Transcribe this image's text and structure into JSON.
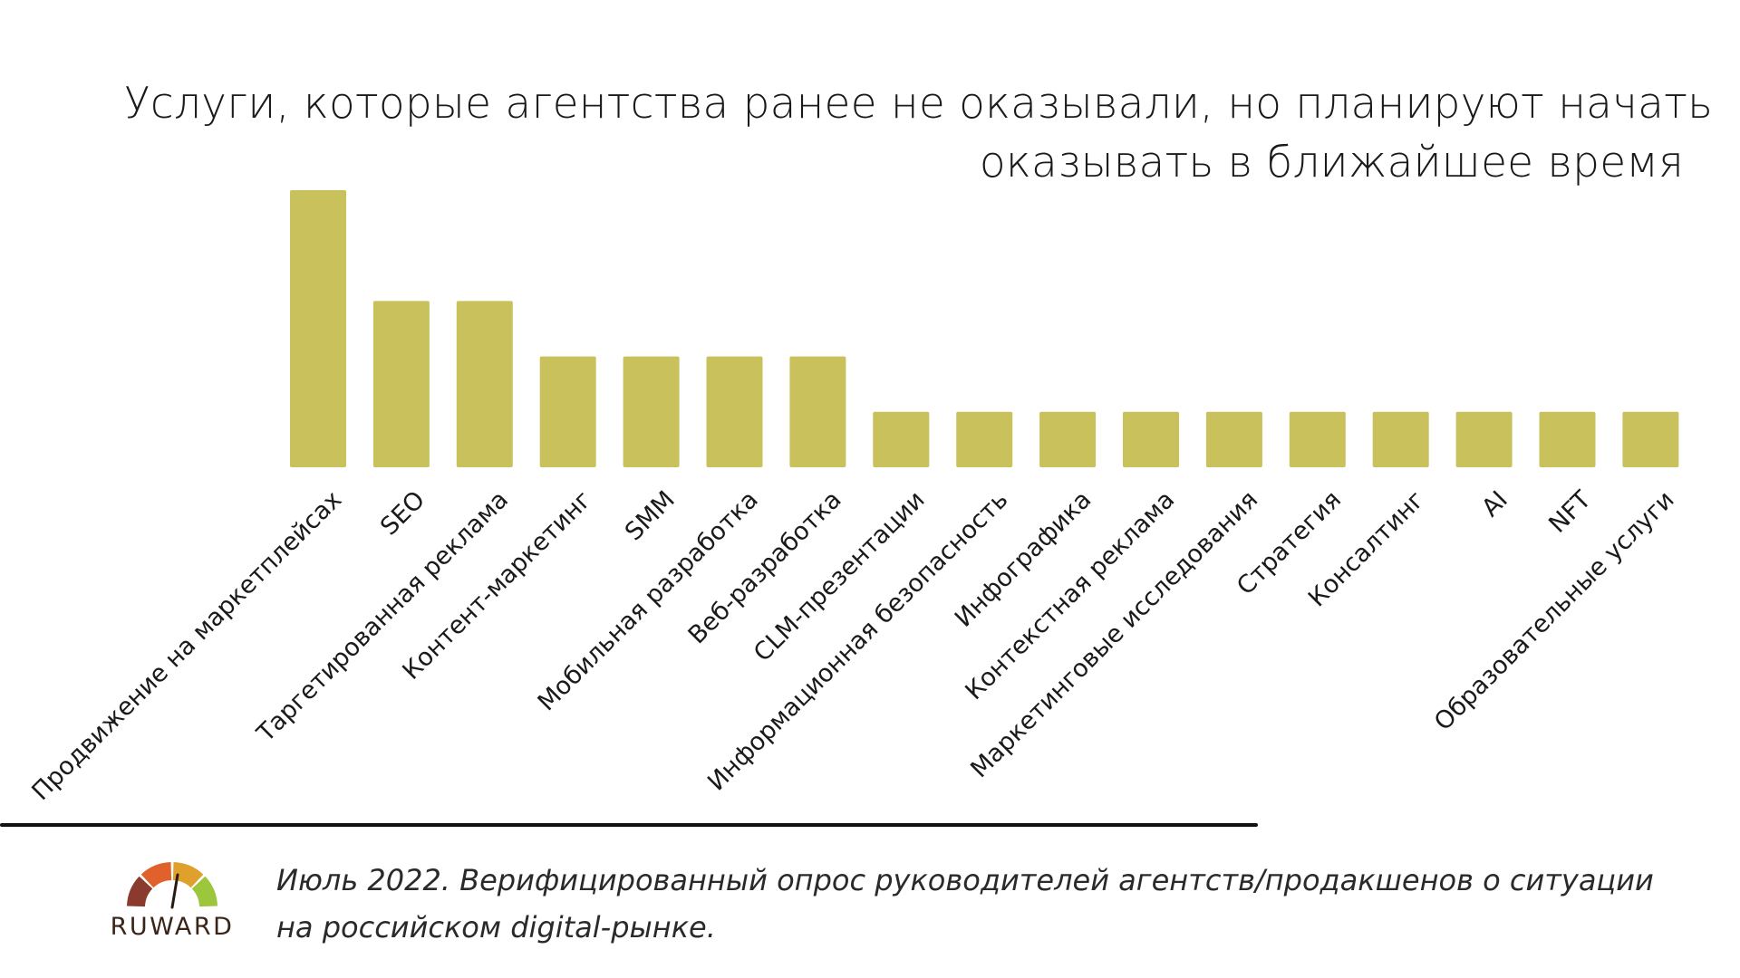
{
  "title": {
    "line1": "Услуги, которые агентства ранее не оказывали, но планируют начать",
    "line2": "оказывать в ближайшее время"
  },
  "chart_data": {
    "type": "bar",
    "title": "Услуги, которые агентства ранее не оказывали, но планируют начать оказывать в ближайшее время",
    "xlabel": "",
    "ylabel": "",
    "ylim": [
      0,
      5
    ],
    "grid": false,
    "bar_color": "#c9c15c",
    "categories": [
      "Продвижение на маркетплейсах",
      "SEO",
      "Таргетированная реклама",
      "Контент-маркетинг",
      "SMM",
      "Мобильная разработка",
      "Веб-разработка",
      "CLM-презентации",
      "Информационная безопасность",
      "Инфографика",
      "Контекстная реклама",
      "Маркетинговые исследования",
      "Стратегия",
      "Консалтинг",
      "AI",
      "NFT",
      "Образовательные услуги"
    ],
    "values": [
      5,
      3,
      3,
      2,
      2,
      2,
      2,
      1,
      1,
      1,
      1,
      1,
      1,
      1,
      1,
      1,
      1
    ]
  },
  "logo": {
    "text": "RUWARD",
    "colors": [
      "#8b3a2e",
      "#e0612c",
      "#e0a02c",
      "#9cc63b"
    ]
  },
  "footnote": {
    "line1": "Июль 2022. Верифицированный опрос руководителей агентств/продакшенов о ситуации",
    "line2": "на российском digital-рынке."
  }
}
